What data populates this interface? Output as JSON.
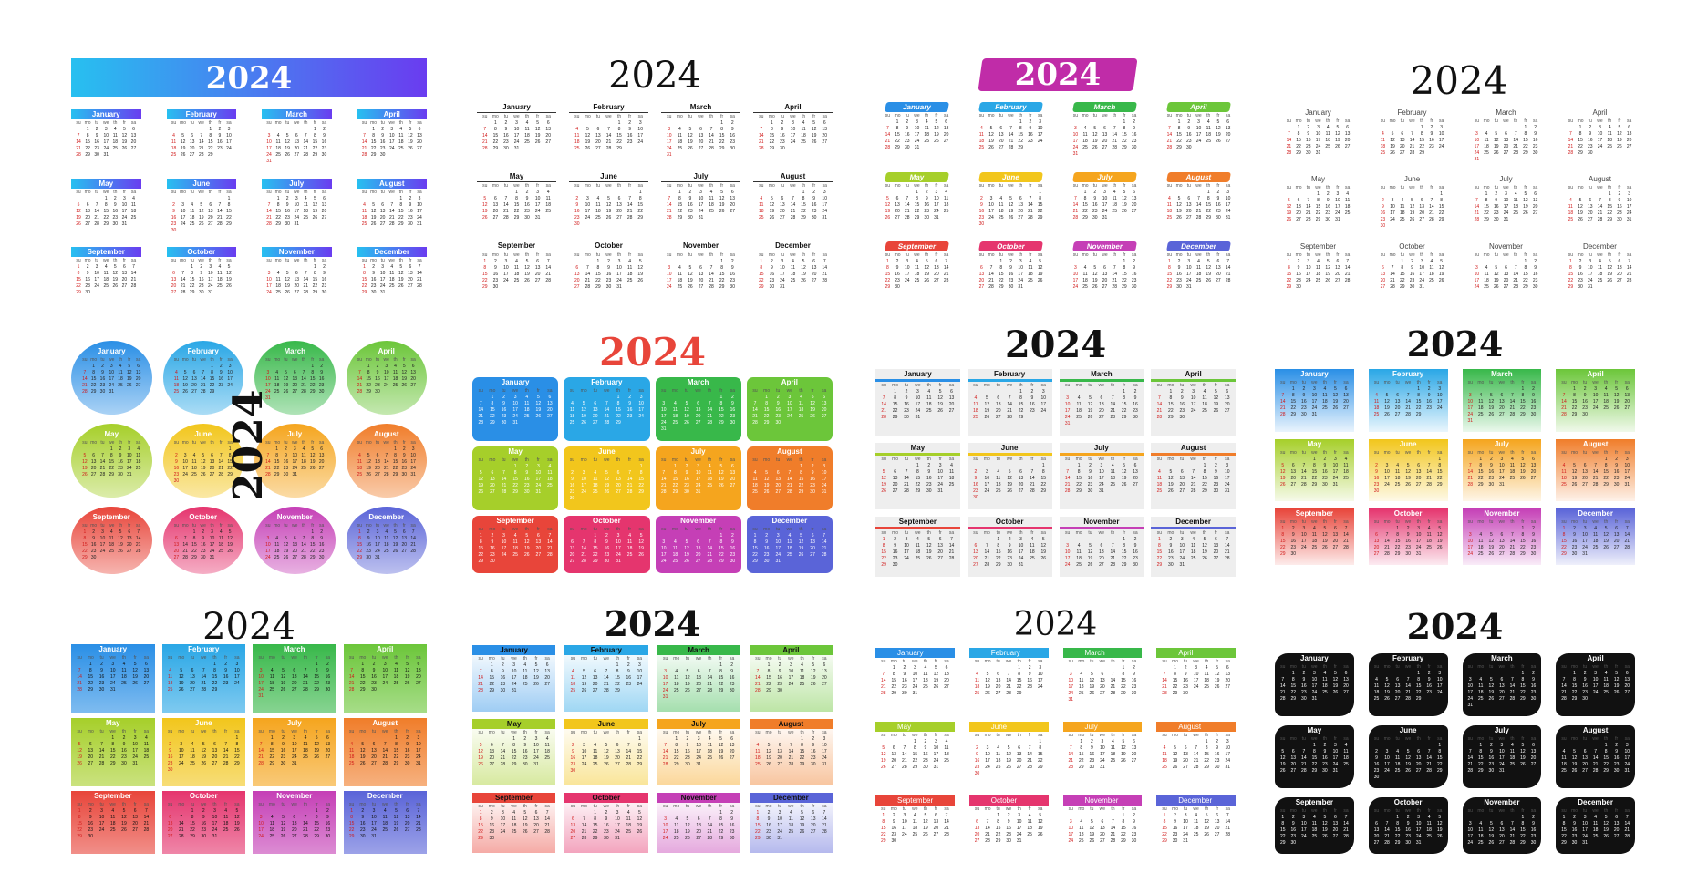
{
  "year": "2024",
  "months": [
    "January",
    "February",
    "March",
    "April",
    "May",
    "June",
    "July",
    "August",
    "September",
    "October",
    "November",
    "December"
  ],
  "weekdays": [
    "su",
    "mo",
    "tu",
    "we",
    "th",
    "fr",
    "sa"
  ],
  "month_offsets": [
    1,
    4,
    5,
    1,
    3,
    6,
    1,
    4,
    0,
    2,
    5,
    0
  ],
  "month_lengths": [
    31,
    29,
    31,
    30,
    31,
    30,
    31,
    31,
    30,
    31,
    30,
    31
  ],
  "colors": {
    "rainbow12": [
      "#2a8fe6",
      "#2aa7e6",
      "#38b84a",
      "#6cc63a",
      "#a6cf2a",
      "#f2c61c",
      "#f5a51e",
      "#f07d2a",
      "#e8453a",
      "#e5356e",
      "#c53fb6",
      "#5a64d8"
    ],
    "gradient_banner": [
      "#27c0f0",
      "#6a3cf0"
    ],
    "dark": "#111111",
    "red": "#d01818"
  },
  "panels": [
    {
      "style": "banner"
    },
    {
      "style": "classic"
    },
    {
      "style": "brush"
    },
    {
      "style": "minimal"
    },
    {
      "style": "circles"
    },
    {
      "style": "tiles"
    },
    {
      "style": "boxed"
    },
    {
      "style": "pastel"
    },
    {
      "style": "gradient"
    },
    {
      "style": "headers"
    },
    {
      "style": "tabs"
    },
    {
      "style": "black"
    }
  ]
}
